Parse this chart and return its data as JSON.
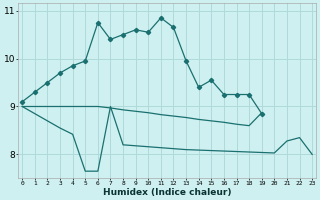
{
  "xlabel": "Humidex (Indice chaleur)",
  "bg_color": "#cff0f0",
  "grid_color": "#b0dada",
  "line_color": "#1a7070",
  "line1_x": [
    0,
    1,
    2,
    3,
    4,
    5,
    6,
    7,
    8,
    9,
    10,
    11,
    12,
    13,
    14,
    15,
    16,
    17,
    18,
    19
  ],
  "line1_y": [
    9.1,
    9.3,
    9.5,
    9.7,
    9.85,
    9.95,
    10.75,
    10.4,
    10.5,
    10.6,
    10.55,
    10.85,
    10.65,
    9.95,
    9.4,
    9.55,
    9.25,
    9.25,
    9.25,
    8.85
  ],
  "line2_x": [
    0,
    1,
    2,
    3,
    4,
    5,
    6,
    7,
    8,
    9,
    10,
    11,
    12,
    13,
    14,
    15,
    16,
    17,
    18,
    19
  ],
  "line2_y": [
    9.0,
    9.0,
    9.0,
    9.0,
    9.0,
    9.0,
    9.0,
    8.97,
    8.93,
    8.9,
    8.87,
    8.83,
    8.8,
    8.77,
    8.73,
    8.7,
    8.67,
    8.63,
    8.6,
    8.87
  ],
  "line3_x": [
    0,
    1,
    2,
    3,
    4,
    5,
    6,
    7,
    8,
    9,
    10,
    11,
    12,
    13,
    14,
    15,
    16,
    17,
    18,
    19,
    20,
    21,
    22,
    23
  ],
  "line3_y": [
    9.0,
    8.85,
    8.7,
    8.55,
    8.42,
    7.65,
    7.65,
    9.0,
    8.2,
    8.18,
    8.16,
    8.14,
    8.12,
    8.1,
    8.09,
    8.08,
    8.07,
    8.06,
    8.05,
    8.04,
    8.03,
    8.28,
    8.35,
    8.0
  ],
  "ylim": [
    7.5,
    11.15
  ],
  "yticks": [
    8,
    9,
    10,
    11
  ],
  "xticks": [
    0,
    1,
    2,
    3,
    4,
    5,
    6,
    7,
    8,
    9,
    10,
    11,
    12,
    13,
    14,
    15,
    16,
    17,
    18,
    19,
    20,
    21,
    22,
    23
  ],
  "xlim": [
    -0.3,
    23.3
  ]
}
